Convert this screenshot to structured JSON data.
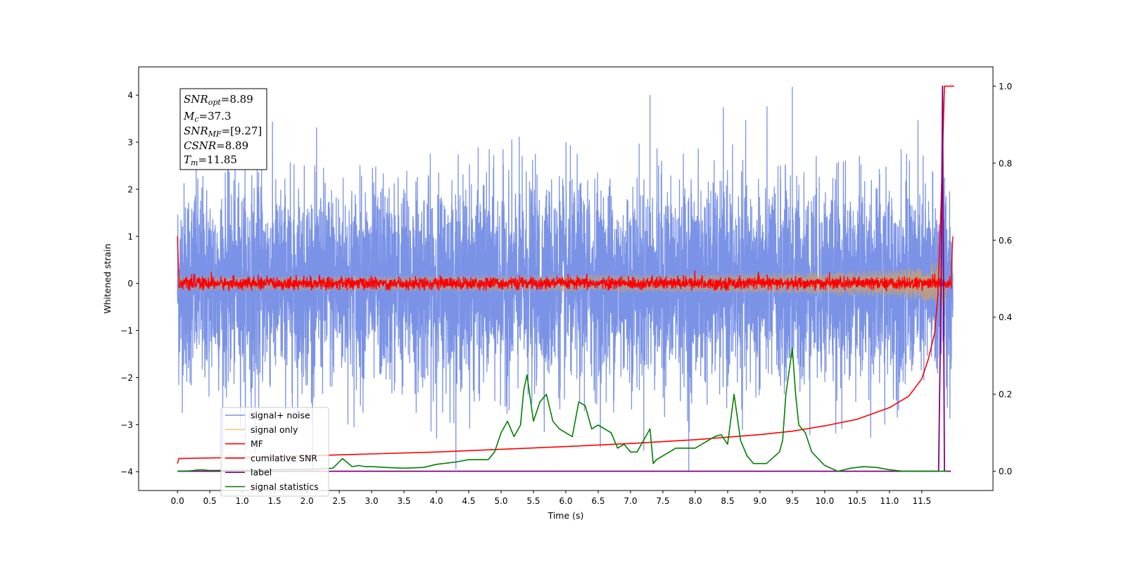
{
  "chart_data": {
    "type": "line",
    "title": "",
    "xlabel": "Time (s)",
    "ylabel": "Whitened strain",
    "y2label": "",
    "xlim": [
      -0.6,
      12.6
    ],
    "ylim": [
      -4.4,
      4.6
    ],
    "y2lim": [
      -0.05,
      1.05
    ],
    "xticks": [
      "0.0",
      "0.5",
      "1.0",
      "1.5",
      "2.0",
      "2.5",
      "3.0",
      "3.5",
      "4.0",
      "4.5",
      "5.0",
      "5.5",
      "6.0",
      "6.5",
      "7.0",
      "7.5",
      "8.0",
      "8.5",
      "9.0",
      "9.5",
      "10.0",
      "10.5",
      "11.0",
      "11.5"
    ],
    "yticks": [
      "−4",
      "−3",
      "−2",
      "−1",
      "0",
      "1",
      "2",
      "3",
      "4"
    ],
    "y2ticks": [
      "0.0",
      "0.2",
      "0.4",
      "0.6",
      "0.8",
      "1.0"
    ],
    "grid": false,
    "legend_position": "lower-left",
    "annotation": {
      "snr_opt": {
        "sym": "SNR",
        "sub": "opt",
        "value": "=8.89"
      },
      "mc": {
        "sym": "M",
        "sub": "c",
        "value": "=37.3"
      },
      "snr_mf": {
        "sym": "SNR",
        "sub": "MF",
        "value": "=[9.27]"
      },
      "csnr": {
        "sym": "CSNR",
        "value": "=8.89"
      },
      "tm": {
        "sym": "T",
        "sub": "m",
        "value": "=11.85"
      }
    },
    "series": [
      {
        "name": "signal+ noise",
        "color": "#7b93e6",
        "axis": "left",
        "x_range": [
          0.0,
          11.98
        ],
        "mean": 0.0,
        "sigma": 1.0,
        "envelope_peak": [
          -3.7,
          4.18
        ],
        "description_points": [
          [
            1.3,
            3.7
          ],
          [
            7.3,
            4.0
          ],
          [
            9.5,
            4.18
          ],
          [
            7.9,
            -4.0
          ],
          [
            1.2,
            -3.6
          ]
        ]
      },
      {
        "name": "signal only",
        "color": "#f5c77a",
        "axis": "left",
        "chirp_peak_time": 11.85,
        "peak_amplitude": 0.7
      },
      {
        "name": "MF",
        "color": "#ff0000",
        "axis": "left",
        "x_range": [
          0.0,
          11.98
        ],
        "mean": 0.0,
        "band": [
          -0.15,
          0.4
        ],
        "start_value": 1.0,
        "end_value": 1.0
      },
      {
        "name": "cumilative SNR",
        "color": "#ff0000",
        "axis": "right",
        "x": [
          0.0,
          0.02,
          1.0,
          2.0,
          3.0,
          4.0,
          5.0,
          6.0,
          7.0,
          8.0,
          9.0,
          9.5,
          10.0,
          10.5,
          11.0,
          11.3,
          11.5,
          11.6,
          11.7,
          11.75,
          11.8,
          11.85,
          12.0
        ],
        "y": [
          0.02,
          0.033,
          0.036,
          0.04,
          0.045,
          0.05,
          0.057,
          0.064,
          0.072,
          0.082,
          0.095,
          0.104,
          0.118,
          0.135,
          0.165,
          0.195,
          0.24,
          0.29,
          0.36,
          0.46,
          0.7,
          1.0,
          1.0
        ]
      },
      {
        "name": "label",
        "color": "#800080",
        "axis": "right",
        "x": [
          0.0,
          11.76,
          11.8,
          11.82,
          11.85,
          11.88,
          11.95
        ],
        "y": [
          0.0,
          0.0,
          0.5,
          1.0,
          0.0,
          0.0,
          0.0
        ]
      },
      {
        "name": "signal statistics",
        "color": "#008000",
        "axis": "right",
        "x": [
          0.0,
          0.2,
          0.35,
          0.5,
          1.0,
          1.5,
          2.0,
          2.2,
          2.4,
          2.55,
          2.7,
          2.8,
          2.9,
          3.0,
          3.2,
          3.5,
          3.8,
          4.0,
          4.3,
          4.5,
          4.8,
          4.9,
          5.0,
          5.1,
          5.2,
          5.3,
          5.35,
          5.4,
          5.5,
          5.6,
          5.7,
          5.8,
          5.9,
          6.0,
          6.1,
          6.2,
          6.3,
          6.4,
          6.5,
          6.7,
          6.8,
          6.9,
          7.0,
          7.1,
          7.3,
          7.35,
          7.4,
          7.5,
          7.7,
          7.9,
          8.0,
          8.2,
          8.3,
          8.4,
          8.5,
          8.6,
          8.7,
          8.8,
          8.9,
          9.0,
          9.1,
          9.3,
          9.35,
          9.4,
          9.5,
          9.55,
          9.6,
          9.7,
          9.8,
          10.0,
          10.2,
          10.4,
          10.6,
          10.8,
          11.0,
          11.2,
          11.5,
          11.7,
          11.9
        ],
        "y": [
          0.0,
          0.001,
          0.004,
          0.002,
          0.003,
          0.004,
          0.005,
          0.006,
          0.008,
          0.033,
          0.012,
          0.015,
          0.012,
          0.012,
          0.01,
          0.008,
          0.01,
          0.018,
          0.024,
          0.03,
          0.03,
          0.05,
          0.1,
          0.13,
          0.09,
          0.12,
          0.21,
          0.25,
          0.13,
          0.18,
          0.2,
          0.13,
          0.11,
          0.1,
          0.09,
          0.18,
          0.17,
          0.11,
          0.12,
          0.1,
          0.06,
          0.07,
          0.05,
          0.05,
          0.11,
          0.02,
          0.03,
          0.04,
          0.06,
          0.06,
          0.06,
          0.08,
          0.09,
          0.095,
          0.07,
          0.2,
          0.08,
          0.04,
          0.02,
          0.02,
          0.02,
          0.05,
          0.08,
          0.2,
          0.32,
          0.2,
          0.12,
          0.1,
          0.05,
          0.015,
          0.0,
          0.008,
          0.012,
          0.01,
          0.004,
          0.0,
          0.0,
          0.0,
          0.0
        ]
      }
    ]
  }
}
